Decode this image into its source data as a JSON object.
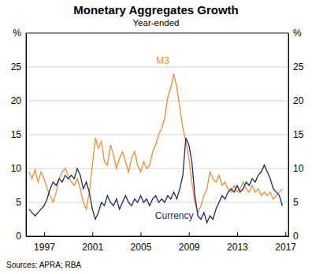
{
  "chart_data": {
    "type": "line",
    "title": "Monetary Aggregates Growth",
    "subtitle": "Year-ended",
    "source": "Sources: APRA; RBA",
    "x": [
      1995.75,
      1996,
      1996.25,
      1996.5,
      1996.75,
      1997,
      1997.25,
      1997.5,
      1997.75,
      1998,
      1998.25,
      1998.5,
      1998.75,
      1999,
      1999.25,
      1999.5,
      1999.75,
      2000,
      2000.25,
      2000.5,
      2000.75,
      2001,
      2001.25,
      2001.5,
      2001.75,
      2002,
      2002.25,
      2002.5,
      2002.75,
      2003,
      2003.25,
      2003.5,
      2003.75,
      2004,
      2004.25,
      2004.5,
      2004.75,
      2005,
      2005.25,
      2005.5,
      2005.75,
      2006,
      2006.25,
      2006.5,
      2006.75,
      2007,
      2007.25,
      2007.5,
      2007.75,
      2008,
      2008.25,
      2008.5,
      2008.75,
      2009,
      2009.25,
      2009.5,
      2009.75,
      2010,
      2010.25,
      2010.5,
      2010.75,
      2011,
      2011.25,
      2011.5,
      2011.75,
      2012,
      2012.25,
      2012.5,
      2012.75,
      2013,
      2013.25,
      2013.5,
      2013.75,
      2014,
      2014.25,
      2014.5,
      2014.75,
      2015,
      2015.25,
      2015.5,
      2015.75,
      2016,
      2016.25,
      2016.5,
      2016.75
    ],
    "series": [
      {
        "name": "M3",
        "color": "#f68b33",
        "values": [
          9.5,
          8.5,
          9.8,
          8.0,
          9.5,
          8.5,
          7.0,
          6.0,
          5.0,
          6.5,
          8.5,
          9.5,
          10.0,
          9.0,
          8.0,
          7.5,
          8.5,
          7.0,
          5.0,
          4.0,
          6.5,
          10.5,
          14.5,
          13.0,
          14.0,
          11.0,
          10.5,
          13.5,
          12.0,
          10.0,
          11.5,
          12.5,
          11.0,
          9.5,
          11.5,
          12.5,
          10.5,
          9.5,
          11.0,
          10.0,
          10.5,
          12.5,
          13.5,
          15.0,
          16.0,
          17.5,
          20.5,
          22.0,
          24.0,
          22.0,
          19.0,
          16.0,
          14.0,
          11.5,
          8.0,
          5.0,
          3.5,
          4.5,
          6.0,
          7.0,
          9.5,
          8.5,
          8.0,
          9.0,
          7.5,
          8.0,
          7.0,
          6.5,
          7.5,
          6.5,
          7.0,
          8.0,
          7.0,
          6.5,
          7.5,
          6.5,
          7.0,
          6.0,
          6.5,
          6.0,
          6.5,
          5.5,
          6.0,
          6.5,
          7.0
        ]
      },
      {
        "name": "Currency",
        "color": "#1c2a6e",
        "values": [
          4.0,
          3.5,
          3.0,
          3.5,
          4.0,
          4.5,
          5.5,
          7.0,
          8.0,
          7.5,
          8.5,
          8.0,
          9.0,
          8.5,
          9.0,
          8.5,
          10.0,
          9.0,
          7.0,
          8.0,
          6.5,
          4.0,
          2.5,
          3.5,
          5.0,
          4.5,
          6.0,
          5.0,
          4.5,
          5.5,
          4.0,
          5.0,
          6.0,
          5.0,
          4.5,
          5.5,
          5.0,
          6.0,
          5.0,
          5.5,
          4.5,
          5.5,
          6.0,
          5.0,
          5.5,
          5.0,
          6.0,
          5.5,
          6.5,
          5.5,
          7.0,
          9.0,
          14.5,
          13.5,
          11.0,
          6.0,
          3.0,
          2.5,
          3.5,
          2.0,
          3.0,
          2.5,
          4.0,
          5.0,
          6.0,
          5.5,
          6.5,
          7.0,
          6.5,
          7.5,
          6.5,
          7.0,
          8.0,
          7.5,
          8.5,
          8.0,
          9.0,
          9.5,
          10.5,
          9.5,
          8.5,
          7.0,
          6.5,
          6.0,
          4.5
        ]
      }
    ],
    "xlim": [
      1995.5,
      2017.25
    ],
    "xticks": [
      1997,
      2001,
      2005,
      2009,
      2013,
      2017
    ],
    "ylim": [
      0,
      30
    ],
    "yticks": [
      0,
      5,
      10,
      15,
      20,
      25,
      {
        "value": 30,
        "label": "%"
      }
    ],
    "y2lim": [
      0,
      30
    ],
    "y2ticks": [
      0,
      5,
      10,
      15,
      20,
      25,
      {
        "value": 30,
        "label": "%"
      }
    ],
    "grid": true
  }
}
